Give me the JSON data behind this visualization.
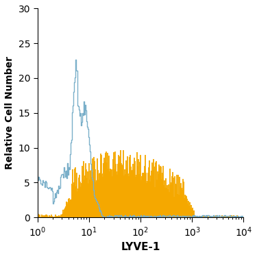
{
  "title": "",
  "xlabel": "LYVE-1",
  "ylabel": "Relative Cell Number",
  "xlim_log": [
    1,
    10000
  ],
  "ylim": [
    0,
    30
  ],
  "yticks": [
    0,
    5,
    10,
    15,
    20,
    25,
    30
  ],
  "blue_color": "#7aafc9",
  "orange_color": "#f5a800",
  "background_color": "#ffffff",
  "figsize": [
    3.75,
    3.75
  ],
  "dpi": 100
}
